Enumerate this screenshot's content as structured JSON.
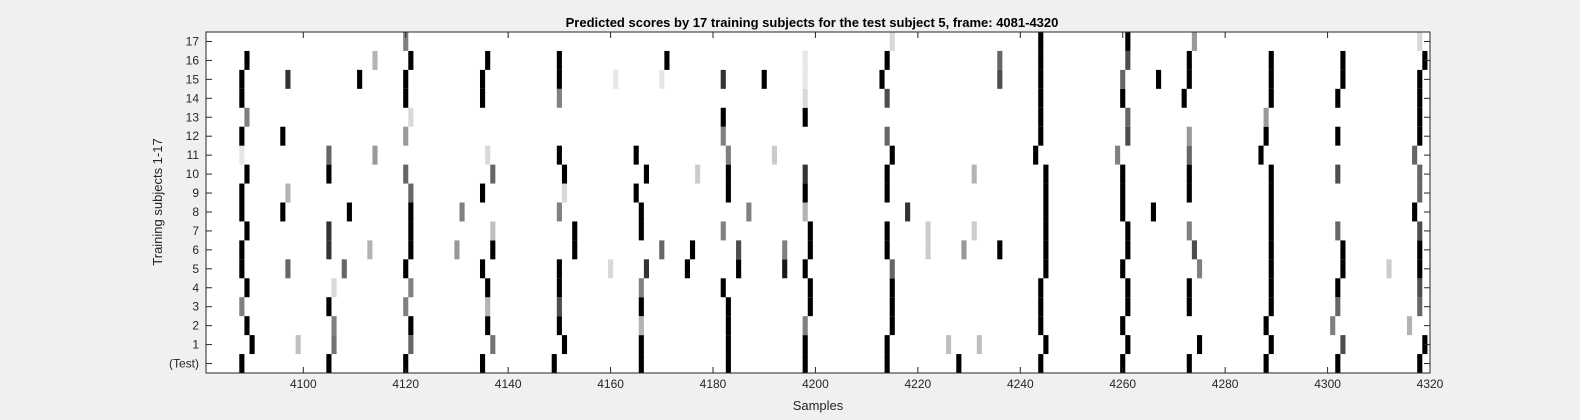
{
  "chart_data": {
    "type": "heatmap",
    "title": "Predicted scores by 17 training subjects for the test subject 5, frame: 4081-4320",
    "xlabel": "Samples",
    "ylabel": "Training subjects 1-17",
    "xlim": [
      4081,
      4320
    ],
    "xticks": [
      4100,
      4120,
      4140,
      4160,
      4180,
      4200,
      4220,
      4240,
      4260,
      4280,
      4300,
      4320
    ],
    "rows": [
      "(Test)",
      "1",
      "2",
      "3",
      "4",
      "5",
      "6",
      "7",
      "8",
      "9",
      "10",
      "11",
      "12",
      "13",
      "14",
      "15",
      "16",
      "17"
    ],
    "colormap": "gray-inverted",
    "value_range": [
      0,
      1
    ],
    "marks": {
      "(Test)": [
        [
          4088,
          1
        ],
        [
          4105,
          1
        ],
        [
          4120,
          1
        ],
        [
          4135,
          1
        ],
        [
          4149,
          1
        ],
        [
          4166,
          1
        ],
        [
          4183,
          1
        ],
        [
          4198,
          1
        ],
        [
          4214,
          1
        ],
        [
          4228,
          1
        ],
        [
          4244,
          1
        ],
        [
          4260,
          1
        ],
        [
          4273,
          1
        ],
        [
          4288,
          1
        ],
        [
          4302,
          1
        ],
        [
          4318,
          1
        ]
      ],
      "1": [
        [
          4090,
          1
        ],
        [
          4099,
          0.25
        ],
        [
          4106,
          0.55
        ],
        [
          4121,
          0.6
        ],
        [
          4137,
          0.55
        ],
        [
          4151,
          1
        ],
        [
          4166,
          1
        ],
        [
          4183,
          1
        ],
        [
          4198,
          1
        ],
        [
          4214,
          1
        ],
        [
          4226,
          0.25
        ],
        [
          4232,
          0.25
        ],
        [
          4245,
          1
        ],
        [
          4261,
          1
        ],
        [
          4275,
          1
        ],
        [
          4289,
          1
        ],
        [
          4303,
          0.7
        ],
        [
          4319,
          1
        ]
      ],
      "2": [
        [
          4089,
          1
        ],
        [
          4106,
          0.5
        ],
        [
          4121,
          1
        ],
        [
          4136,
          1
        ],
        [
          4150,
          1
        ],
        [
          4166,
          0.3
        ],
        [
          4183,
          1
        ],
        [
          4198,
          0.5
        ],
        [
          4215,
          1
        ],
        [
          4244,
          1
        ],
        [
          4260,
          1
        ],
        [
          4288,
          1
        ],
        [
          4301,
          0.5
        ],
        [
          4316,
          0.3
        ]
      ],
      "3": [
        [
          4088,
          0.5
        ],
        [
          4105,
          1
        ],
        [
          4120,
          0.5
        ],
        [
          4136,
          0.3
        ],
        [
          4150,
          0.7
        ],
        [
          4166,
          1
        ],
        [
          4183,
          1
        ],
        [
          4199,
          1
        ],
        [
          4215,
          1
        ],
        [
          4244,
          1
        ],
        [
          4261,
          1
        ],
        [
          4273,
          1
        ],
        [
          4289,
          1
        ],
        [
          4302,
          0.6
        ],
        [
          4318,
          0.6
        ]
      ],
      "4": [
        [
          4089,
          1
        ],
        [
          4106,
          0.15
        ],
        [
          4121,
          0.5
        ],
        [
          4136,
          1
        ],
        [
          4150,
          1
        ],
        [
          4166,
          0.5
        ],
        [
          4182,
          1
        ],
        [
          4199,
          1
        ],
        [
          4215,
          1
        ],
        [
          4244,
          1
        ],
        [
          4261,
          1
        ],
        [
          4273,
          1
        ],
        [
          4289,
          1
        ],
        [
          4302,
          1
        ],
        [
          4318,
          0.7
        ]
      ],
      "5": [
        [
          4088,
          1
        ],
        [
          4097,
          0.6
        ],
        [
          4108,
          0.6
        ],
        [
          4120,
          1
        ],
        [
          4135,
          1
        ],
        [
          4150,
          1
        ],
        [
          4160,
          0.15
        ],
        [
          4167,
          0.8
        ],
        [
          4175,
          1
        ],
        [
          4185,
          1
        ],
        [
          4194,
          0.9
        ],
        [
          4198,
          1
        ],
        [
          4215,
          0.6
        ],
        [
          4245,
          1
        ],
        [
          4260,
          1
        ],
        [
          4275,
          0.5
        ],
        [
          4289,
          1
        ],
        [
          4303,
          1
        ],
        [
          4312,
          0.2
        ],
        [
          4318,
          1
        ]
      ],
      "6": [
        [
          4088,
          1
        ],
        [
          4105,
          0.8
        ],
        [
          4113,
          0.3
        ],
        [
          4121,
          1
        ],
        [
          4130,
          0.4
        ],
        [
          4137,
          1
        ],
        [
          4153,
          1
        ],
        [
          4170,
          0.6
        ],
        [
          4176,
          1
        ],
        [
          4185,
          0.7
        ],
        [
          4194,
          0.5
        ],
        [
          4199,
          1
        ],
        [
          4214,
          1
        ],
        [
          4222,
          0.2
        ],
        [
          4229,
          0.4
        ],
        [
          4236,
          1
        ],
        [
          4245,
          1
        ],
        [
          4261,
          1
        ],
        [
          4274,
          0.7
        ],
        [
          4289,
          1
        ],
        [
          4303,
          1
        ],
        [
          4318,
          1
        ]
      ],
      "7": [
        [
          4089,
          1
        ],
        [
          4105,
          0.8
        ],
        [
          4121,
          1
        ],
        [
          4137,
          0.25
        ],
        [
          4153,
          1
        ],
        [
          4166,
          1
        ],
        [
          4182,
          0.5
        ],
        [
          4199,
          1
        ],
        [
          4214,
          1
        ],
        [
          4222,
          0.2
        ],
        [
          4231,
          0.2
        ],
        [
          4245,
          1
        ],
        [
          4261,
          1
        ],
        [
          4273,
          0.5
        ],
        [
          4289,
          1
        ],
        [
          4302,
          0.6
        ],
        [
          4318,
          0.7
        ]
      ],
      "8": [
        [
          4088,
          1
        ],
        [
          4096,
          1
        ],
        [
          4109,
          1
        ],
        [
          4121,
          1
        ],
        [
          4131,
          0.5
        ],
        [
          4150,
          0.5
        ],
        [
          4166,
          1
        ],
        [
          4187,
          0.5
        ],
        [
          4198,
          0.3
        ],
        [
          4218,
          0.8
        ],
        [
          4245,
          1
        ],
        [
          4260,
          1
        ],
        [
          4266,
          1
        ],
        [
          4289,
          1
        ],
        [
          4317,
          1
        ]
      ],
      "9": [
        [
          4088,
          1
        ],
        [
          4097,
          0.3
        ],
        [
          4121,
          0.6
        ],
        [
          4135,
          1
        ],
        [
          4151,
          0.15
        ],
        [
          4165,
          1
        ],
        [
          4183,
          1
        ],
        [
          4198,
          1
        ],
        [
          4214,
          1
        ],
        [
          4245,
          1
        ],
        [
          4260,
          1
        ],
        [
          4273,
          1
        ],
        [
          4289,
          1
        ],
        [
          4318,
          0.6
        ]
      ],
      "10": [
        [
          4089,
          1
        ],
        [
          4105,
          1
        ],
        [
          4120,
          0.6
        ],
        [
          4137,
          0.6
        ],
        [
          4151,
          1
        ],
        [
          4167,
          1
        ],
        [
          4177,
          0.2
        ],
        [
          4183,
          1
        ],
        [
          4198,
          0.8
        ],
        [
          4214,
          1
        ],
        [
          4231,
          0.3
        ],
        [
          4245,
          1
        ],
        [
          4260,
          1
        ],
        [
          4273,
          1
        ],
        [
          4289,
          1
        ],
        [
          4302,
          0.7
        ],
        [
          4318,
          0.6
        ]
      ],
      "11": [
        [
          4088,
          0.1
        ],
        [
          4105,
          0.6
        ],
        [
          4114,
          0.4
        ],
        [
          4136,
          0.15
        ],
        [
          4150,
          1
        ],
        [
          4165,
          1
        ],
        [
          4183,
          0.5
        ],
        [
          4192,
          0.2
        ],
        [
          4215,
          1
        ],
        [
          4243,
          1
        ],
        [
          4259,
          0.5
        ],
        [
          4273,
          0.6
        ],
        [
          4287,
          1
        ],
        [
          4317,
          0.6
        ]
      ],
      "12": [
        [
          4088,
          1
        ],
        [
          4096,
          1
        ],
        [
          4120,
          0.4
        ],
        [
          4182,
          0.5
        ],
        [
          4214,
          0.6
        ],
        [
          4244,
          1
        ],
        [
          4261,
          0.7
        ],
        [
          4273,
          0.4
        ],
        [
          4288,
          1
        ],
        [
          4302,
          1
        ],
        [
          4318,
          1
        ]
      ],
      "13": [
        [
          4089,
          0.5
        ],
        [
          4121,
          0.15
        ],
        [
          4182,
          1
        ],
        [
          4198,
          1
        ],
        [
          4244,
          1
        ],
        [
          4261,
          0.6
        ],
        [
          4288,
          0.4
        ],
        [
          4318,
          1
        ]
      ],
      "14": [
        [
          4088,
          1
        ],
        [
          4120,
          1
        ],
        [
          4135,
          1
        ],
        [
          4150,
          0.5
        ],
        [
          4198,
          0.15
        ],
        [
          4214,
          0.7
        ],
        [
          4244,
          1
        ],
        [
          4260,
          1
        ],
        [
          4272,
          1
        ],
        [
          4289,
          1
        ],
        [
          4302,
          1
        ],
        [
          4318,
          1
        ]
      ],
      "15": [
        [
          4088,
          1
        ],
        [
          4097,
          0.8
        ],
        [
          4111,
          1
        ],
        [
          4120,
          1
        ],
        [
          4135,
          1
        ],
        [
          4150,
          1
        ],
        [
          4161,
          0.1
        ],
        [
          4170,
          0.1
        ],
        [
          4182,
          0.8
        ],
        [
          4190,
          1
        ],
        [
          4198,
          0.1
        ],
        [
          4213,
          1
        ],
        [
          4236,
          0.7
        ],
        [
          4244,
          1
        ],
        [
          4260,
          0.6
        ],
        [
          4267,
          1
        ],
        [
          4273,
          1
        ],
        [
          4289,
          1
        ],
        [
          4303,
          1
        ],
        [
          4318,
          1
        ]
      ],
      "16": [
        [
          4089,
          1
        ],
        [
          4114,
          0.3
        ],
        [
          4121,
          1
        ],
        [
          4136,
          1
        ],
        [
          4150,
          1
        ],
        [
          4171,
          1
        ],
        [
          4198,
          0.1
        ],
        [
          4214,
          1
        ],
        [
          4236,
          0.6
        ],
        [
          4244,
          1
        ],
        [
          4261,
          0.7
        ],
        [
          4273,
          1
        ],
        [
          4289,
          1
        ],
        [
          4303,
          1
        ],
        [
          4319,
          1
        ]
      ],
      "17": [
        [
          4120,
          0.5
        ],
        [
          4215,
          0.15
        ],
        [
          4244,
          1
        ],
        [
          4261,
          1
        ],
        [
          4274,
          0.4
        ],
        [
          4318,
          0.15
        ]
      ]
    }
  }
}
